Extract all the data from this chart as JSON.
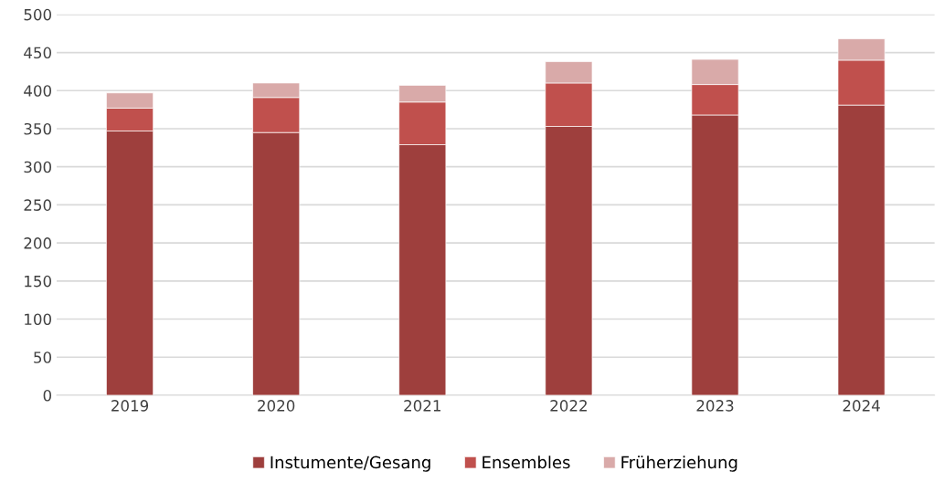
{
  "chart_data": {
    "type": "bar",
    "stacked": true,
    "categories": [
      "2019",
      "2020",
      "2021",
      "2022",
      "2023",
      "2024"
    ],
    "series": [
      {
        "name": "Instumente/Gesang",
        "color": "#9e3f3d",
        "values": [
          347,
          345,
          329,
          353,
          368,
          381
        ]
      },
      {
        "name": "Ensembles",
        "color": "#c0504d",
        "values": [
          30,
          46,
          56,
          57,
          40,
          59
        ]
      },
      {
        "name": "Früherziehung",
        "color": "#d9aaa9",
        "values": [
          20,
          19,
          22,
          28,
          33,
          28
        ]
      }
    ],
    "ylim": [
      0,
      500
    ],
    "yticks": [
      0,
      50,
      100,
      150,
      200,
      250,
      300,
      350,
      400,
      450,
      500
    ],
    "grid": "y",
    "legend": "bottom"
  }
}
